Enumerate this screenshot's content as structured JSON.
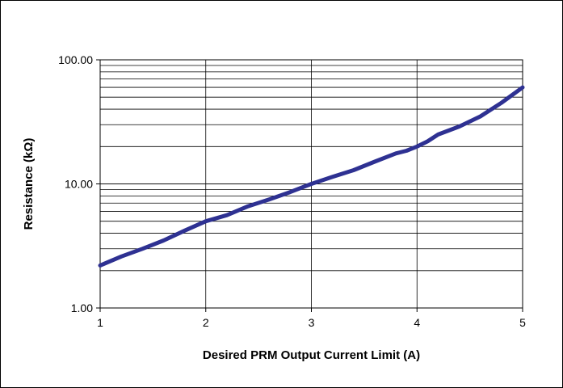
{
  "chart_data": {
    "type": "line",
    "title": "",
    "xlabel": "Desired PRM Output Current Limit (A)",
    "ylabel": "Resistance (kΩ)",
    "x_scale": "linear",
    "y_scale": "log",
    "xlim": [
      1,
      5
    ],
    "ylim": [
      1,
      100
    ],
    "x_ticks": [
      1,
      2,
      3,
      4,
      5
    ],
    "x_tick_labels": [
      "1",
      "2",
      "3",
      "4",
      "5"
    ],
    "y_ticks": [
      1,
      10,
      100
    ],
    "y_tick_labels": [
      "1.00",
      "10.00",
      "100.00"
    ],
    "grid": true,
    "legend": "none",
    "series": [
      {
        "color": "#2e3192",
        "x": [
          1.0,
          1.2,
          1.4,
          1.6,
          1.8,
          2.0,
          2.2,
          2.4,
          2.6,
          2.8,
          3.0,
          3.2,
          3.4,
          3.6,
          3.8,
          3.9,
          4.0,
          4.1,
          4.2,
          4.4,
          4.6,
          4.8,
          5.0
        ],
        "y": [
          2.2,
          2.6,
          3.0,
          3.5,
          4.2,
          5.0,
          5.6,
          6.6,
          7.5,
          8.6,
          10.0,
          11.4,
          12.9,
          15.1,
          17.6,
          18.5,
          20.0,
          22.0,
          25.0,
          29.0,
          35.0,
          45.0,
          60.0
        ]
      }
    ]
  }
}
